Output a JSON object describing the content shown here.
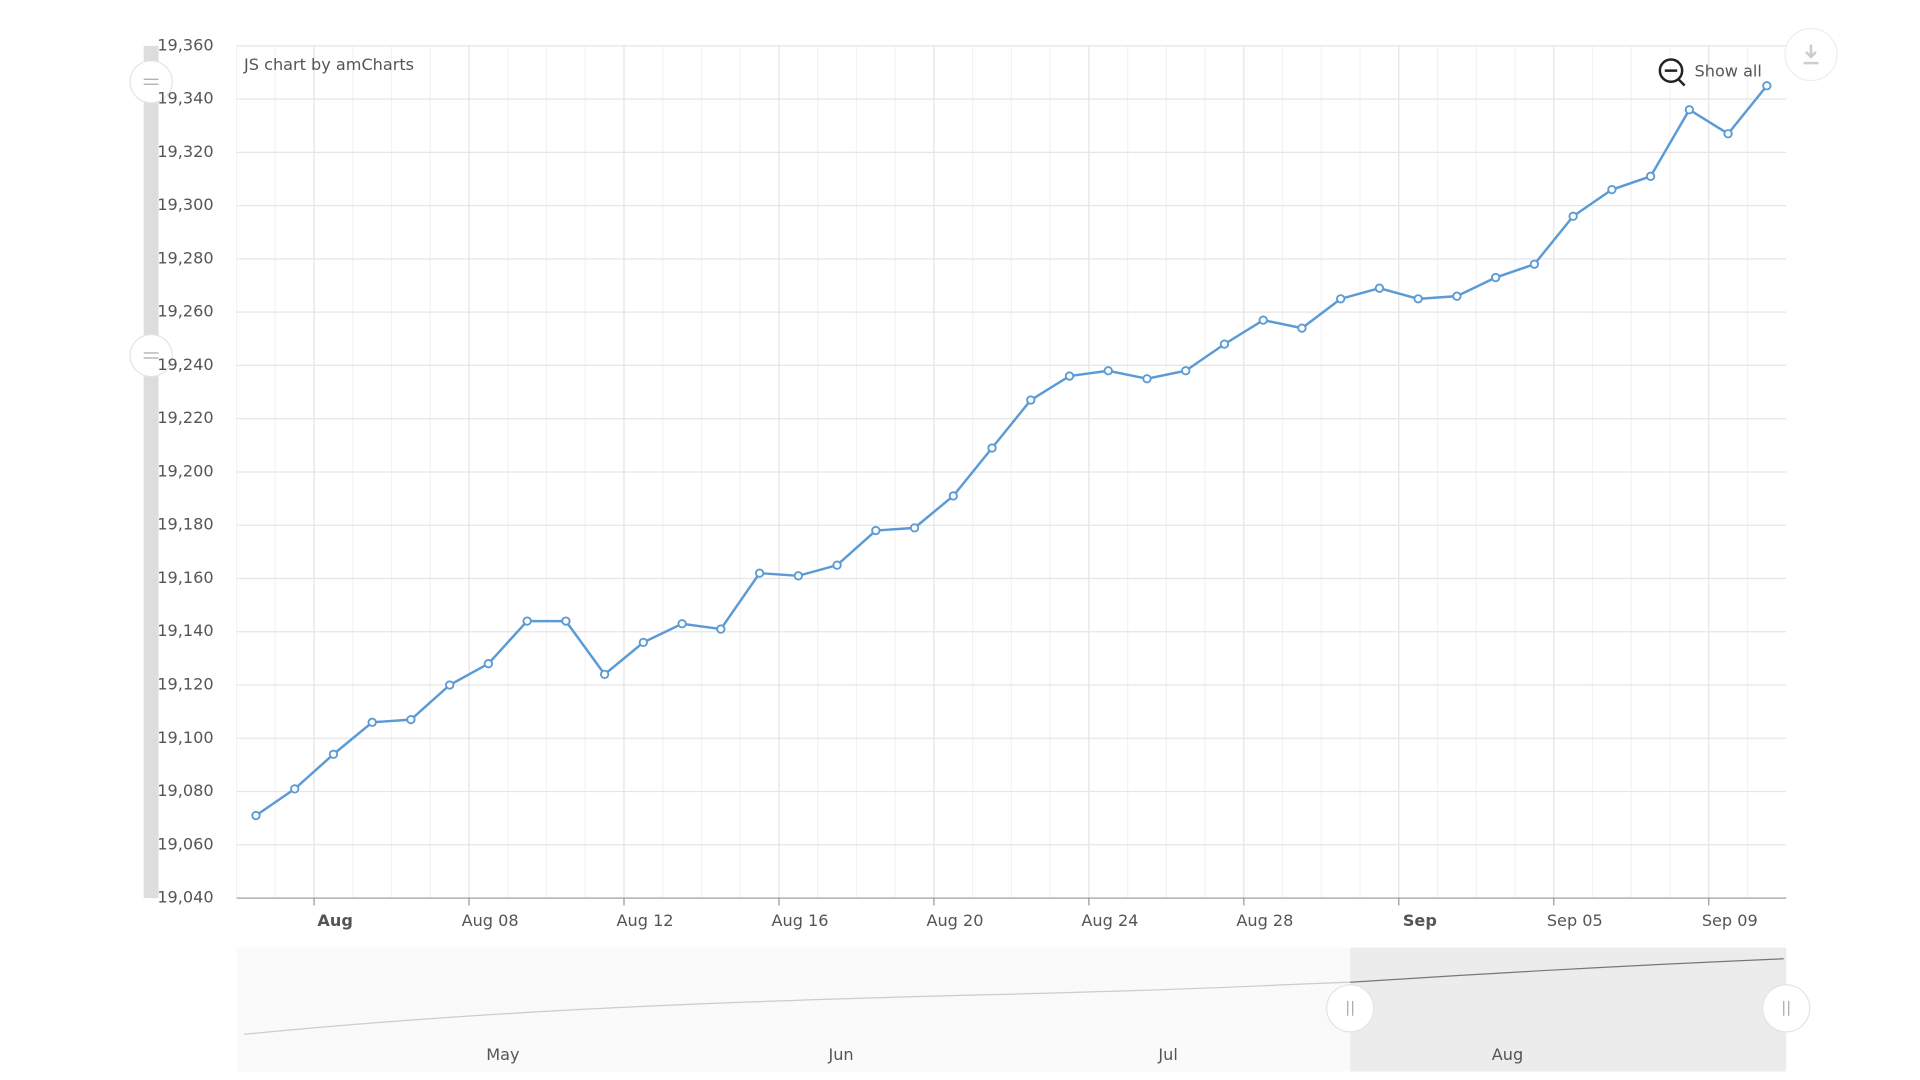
{
  "chart_data": {
    "type": "line",
    "credit": "JS chart by amCharts",
    "zoom_button": "Show all",
    "x": [
      "Aug 02",
      "Aug 03",
      "Aug 04",
      "Aug 05",
      "Aug 06",
      "Aug 07",
      "Aug 08",
      "Aug 09",
      "Aug 10",
      "Aug 11",
      "Aug 12",
      "Aug 13",
      "Aug 14",
      "Aug 15",
      "Aug 16",
      "Aug 17",
      "Aug 18",
      "Aug 19",
      "Aug 20",
      "Aug 21",
      "Aug 22",
      "Aug 23",
      "Aug 24",
      "Aug 25",
      "Aug 26",
      "Aug 27",
      "Aug 28",
      "Aug 29",
      "Aug 30",
      "Aug 31",
      "Sep 01",
      "Sep 02",
      "Sep 03",
      "Sep 04",
      "Sep 05",
      "Sep 06",
      "Sep 07",
      "Sep 08",
      "Sep 09",
      "Sep 10"
    ],
    "series": [
      {
        "color": "#5b9bd5",
        "values": [
          19071,
          19081,
          19094,
          19106,
          19107,
          19120,
          19128,
          19144,
          19144,
          19124,
          19136,
          19143,
          19141,
          19162,
          19161,
          19165,
          19178,
          19179,
          19191,
          19209,
          19227,
          19236,
          19238,
          19235,
          19238,
          19248,
          19257,
          19254,
          19265,
          19269,
          19265,
          19266,
          19273,
          19278,
          19296,
          19306,
          19311,
          19336,
          19327,
          19345
        ]
      }
    ],
    "xticks": [
      {
        "value": "Aug 04",
        "label": "Aug"
      },
      "Aug 08",
      "Aug 12",
      "Aug 16",
      "Aug 20",
      "Aug 24",
      "Aug 28",
      {
        "value": "Sep 01",
        "label": "Sep"
      },
      "Sep 05",
      "Sep 09"
    ],
    "ylim": [
      19040,
      19360
    ],
    "yticks": [
      {
        "value": 19040,
        "label": "19,040"
      },
      {
        "value": 19060,
        "label": "19,060"
      },
      {
        "value": 19080,
        "label": "19,080"
      },
      {
        "value": 19100,
        "label": "19,100"
      },
      {
        "value": 19120,
        "label": "19,120"
      },
      {
        "value": 19140,
        "label": "19,140"
      },
      {
        "value": 19160,
        "label": "19,160"
      },
      {
        "value": 19180,
        "label": "19,180"
      },
      {
        "value": 19200,
        "label": "19,200"
      },
      {
        "value": 19220,
        "label": "19,220"
      },
      {
        "value": 19240,
        "label": "19,240"
      },
      {
        "value": 19260,
        "label": "19,260"
      },
      {
        "value": 19280,
        "label": "19,280"
      },
      {
        "value": 19300,
        "label": "19,300"
      },
      {
        "value": 19320,
        "label": "19,320"
      },
      {
        "value": 19340,
        "label": "19,340"
      },
      {
        "value": 19360,
        "label": "19,360"
      }
    ],
    "grid": true,
    "navigator": {
      "labels": [
        "May",
        "Jun",
        "Jul",
        "Aug"
      ]
    }
  }
}
